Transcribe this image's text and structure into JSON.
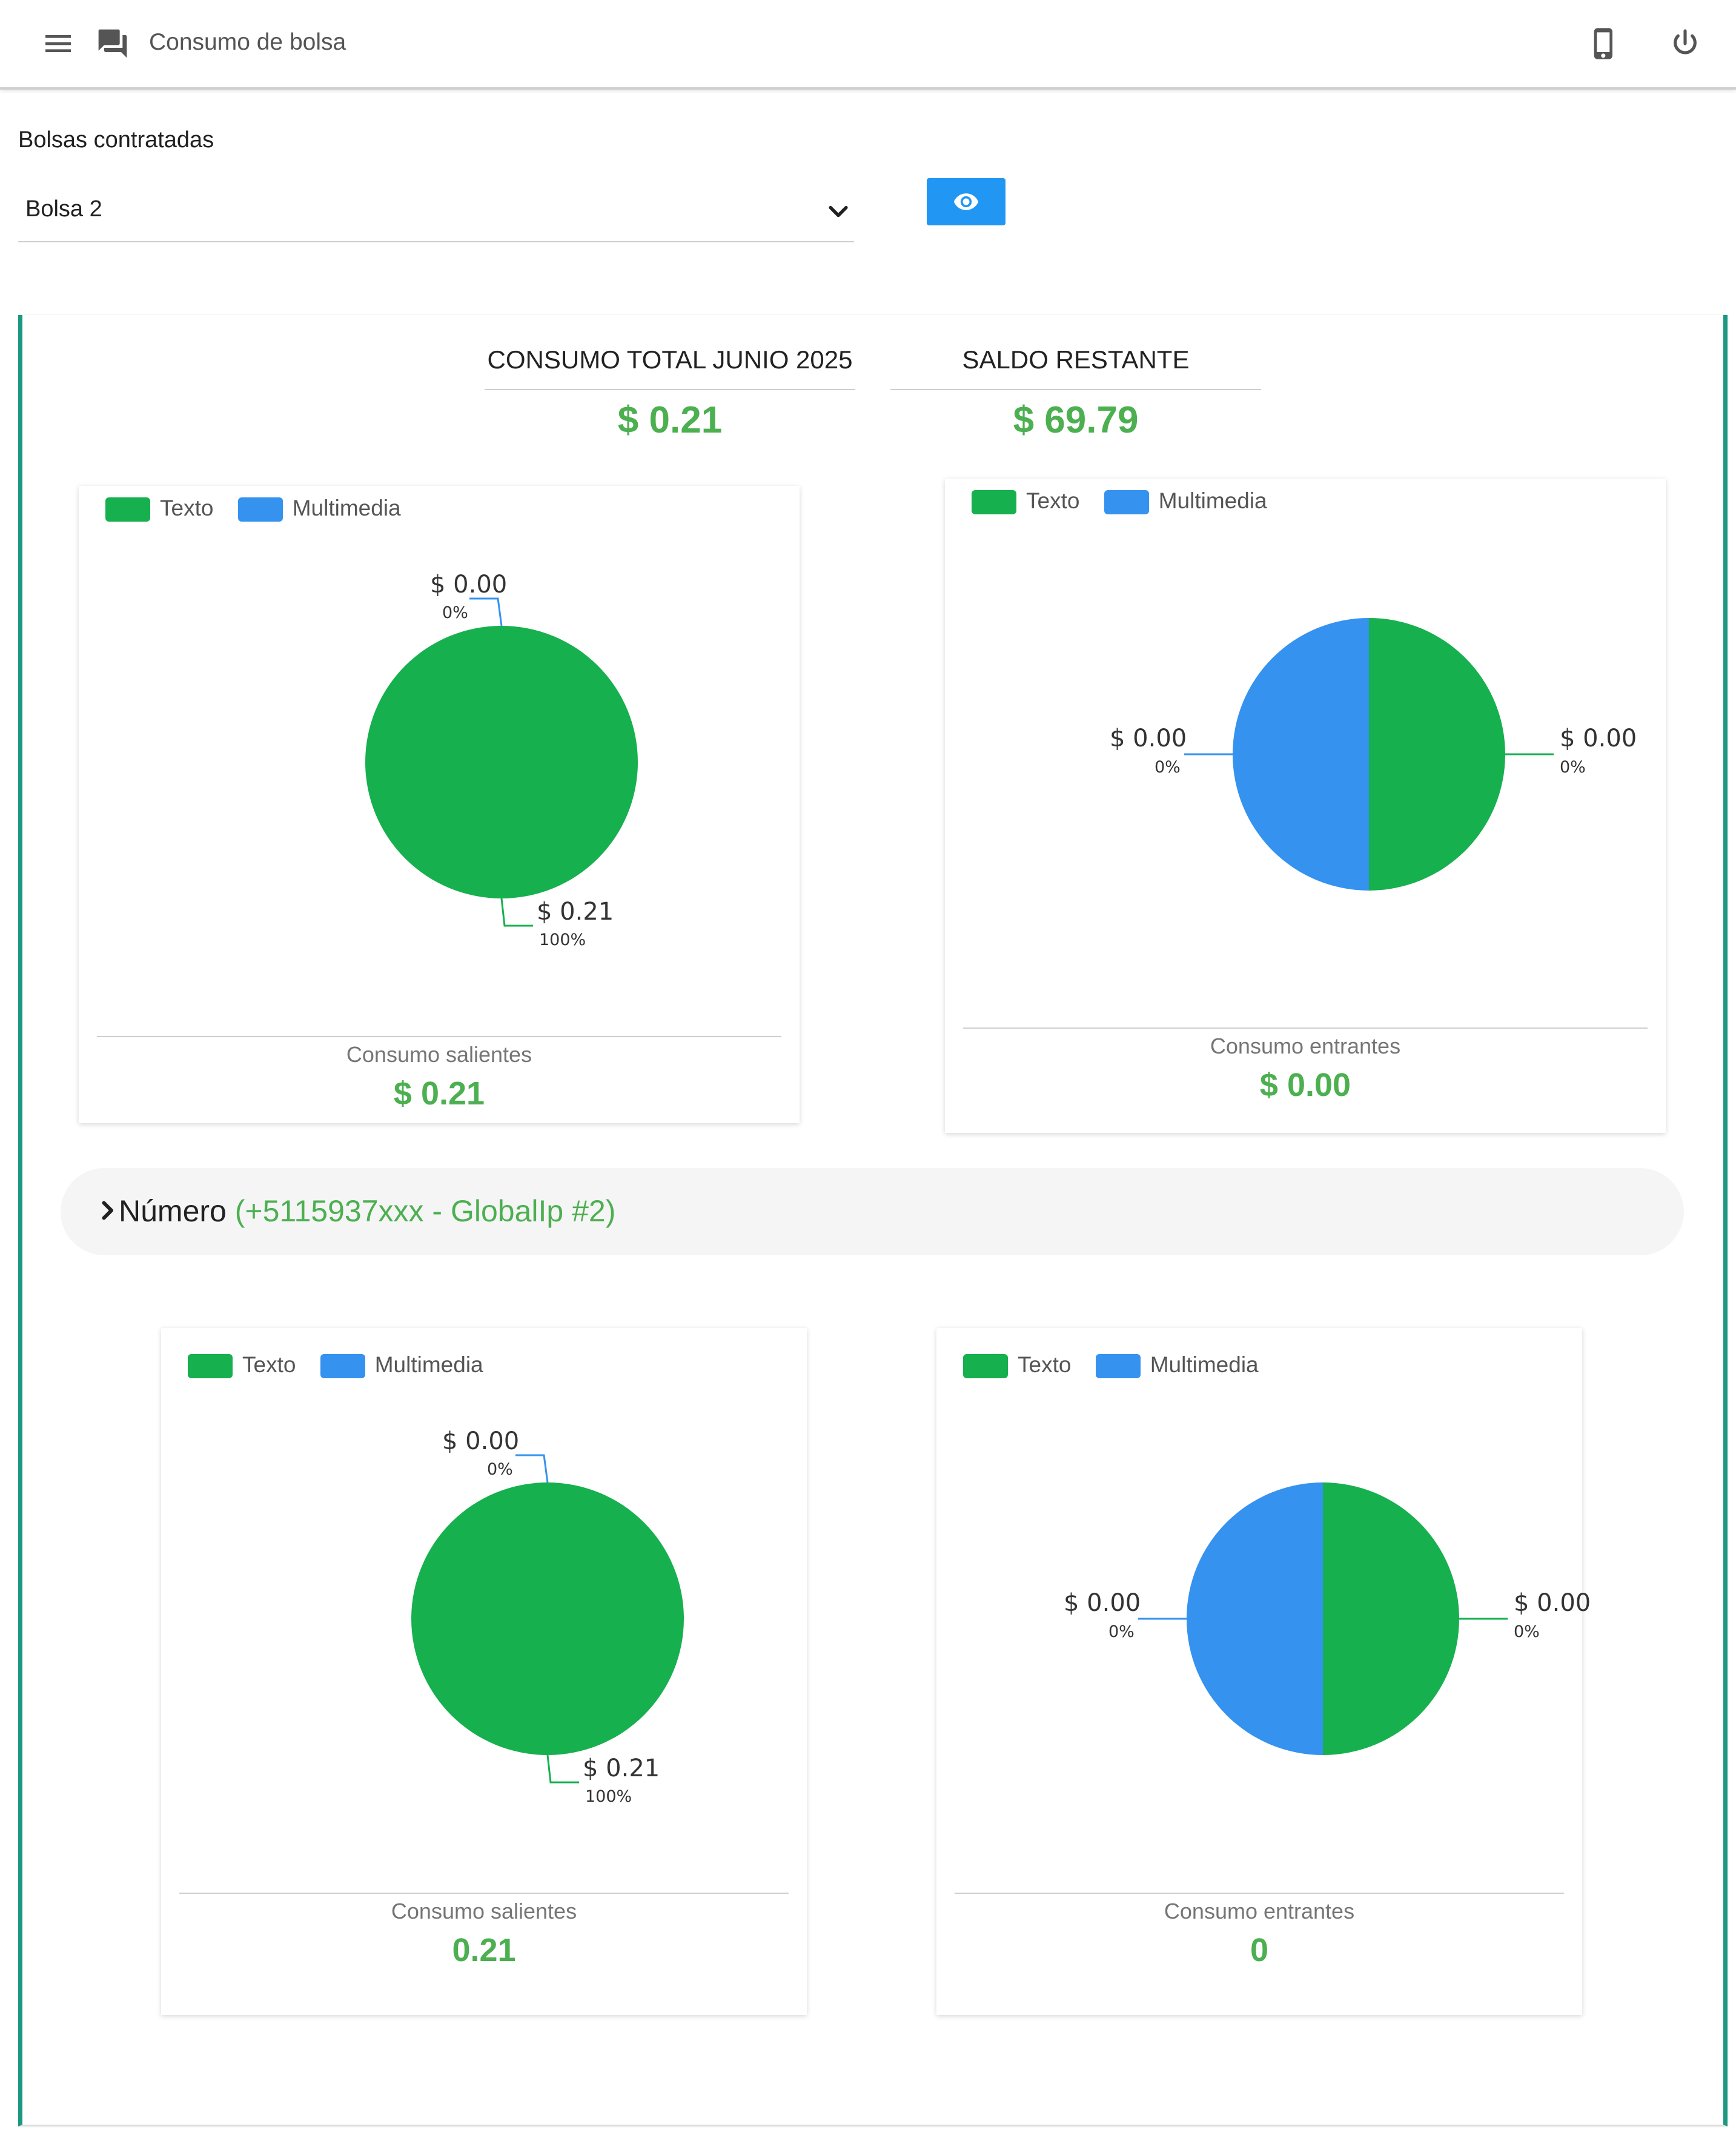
{
  "header": {
    "title": "Consumo de bolsa",
    "icons": [
      "menu-icon",
      "chat-icon",
      "phone-icon",
      "power-icon"
    ]
  },
  "filters": {
    "label": "Bolsas contratadas",
    "selected": "Bolsa 2",
    "view_button_icon": "eye-icon"
  },
  "summary": {
    "total_label": "CONSUMO TOTAL JUNIO 2025",
    "total_value": "$ 0.21",
    "balance_label": "SALDO RESTANTE",
    "balance_value": "$ 69.79"
  },
  "legend": {
    "texto": "Texto",
    "multimedia": "Multimedia"
  },
  "colors": {
    "texto": "#16b04e",
    "multimedia": "#3592ef",
    "accent": "#4caf50",
    "button": "#2196f3",
    "border": "#1a9880"
  },
  "cards": {
    "out_top": {
      "caption": "Consumo salientes",
      "value": "$ 0.21",
      "lbl1_amt": "$ 0.00",
      "lbl1_pct": "0%",
      "lbl2_amt": "$ 0.21",
      "lbl2_pct": "100%"
    },
    "in_top": {
      "caption": "Consumo entrantes",
      "value": "$ 0.00",
      "lbl1_amt": "$ 0.00",
      "lbl1_pct": "0%",
      "lbl2_amt": "$ 0.00",
      "lbl2_pct": "0%"
    },
    "out_bottom": {
      "caption": "Consumo salientes",
      "value": "0.21",
      "lbl1_amt": "$ 0.00",
      "lbl1_pct": "0%",
      "lbl2_amt": "$ 0.21",
      "lbl2_pct": "100%"
    },
    "in_bottom": {
      "caption": "Consumo entrantes",
      "value": "0",
      "lbl1_amt": "$ 0.00",
      "lbl1_pct": "0%",
      "lbl2_amt": "$ 0.00",
      "lbl2_pct": "0%"
    }
  },
  "number_row": {
    "label": "Número",
    "detail": "(+5115937xxx - GlobalIp #2)"
  },
  "chart_data": [
    {
      "type": "pie",
      "title": "Consumo salientes",
      "categories": [
        "Texto",
        "Multimedia"
      ],
      "values": [
        0.21,
        0.0
      ],
      "percent_labels": [
        "100%",
        "0%"
      ]
    },
    {
      "type": "pie",
      "title": "Consumo entrantes",
      "categories": [
        "Texto",
        "Multimedia"
      ],
      "values": [
        0.0,
        0.0
      ],
      "percent_labels": [
        "0%",
        "0%"
      ]
    },
    {
      "type": "pie",
      "title": "Consumo salientes",
      "categories": [
        "Texto",
        "Multimedia"
      ],
      "values": [
        0.21,
        0.0
      ],
      "percent_labels": [
        "100%",
        "0%"
      ]
    },
    {
      "type": "pie",
      "title": "Consumo entrantes",
      "categories": [
        "Texto",
        "Multimedia"
      ],
      "values": [
        0.0,
        0.0
      ],
      "percent_labels": [
        "0%",
        "0%"
      ]
    }
  ]
}
